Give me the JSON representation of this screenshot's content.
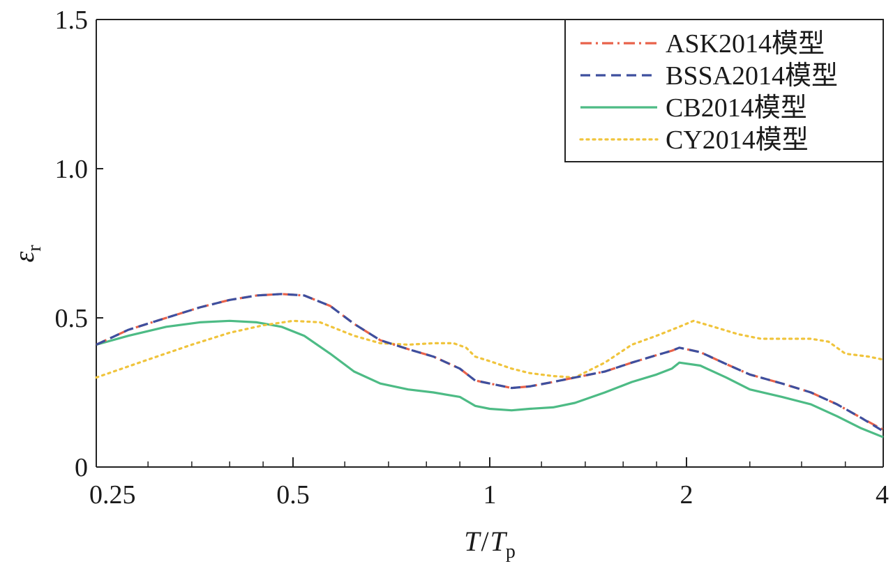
{
  "chart_data": {
    "type": "line",
    "title": "",
    "xlabel": "T/Tp",
    "xlabel_main": "T",
    "xlabel_sep": "/",
    "xlabel_sub_base": "T",
    "xlabel_subscript": "p",
    "ylabel": "εr",
    "ylabel_main": "ε",
    "ylabel_subscript": "r",
    "x_scale": "log2",
    "xlim": [
      0.25,
      4
    ],
    "ylim": [
      0,
      1.5
    ],
    "x_ticks": [
      0.25,
      0.5,
      1,
      2,
      4
    ],
    "x_tick_labels": [
      "0.25",
      "0.5",
      "1",
      "2",
      "4"
    ],
    "y_ticks": [
      0,
      0.5,
      1.0,
      1.5
    ],
    "y_tick_labels": [
      "0",
      "0.5",
      "1.0",
      "1.5"
    ],
    "grid": false,
    "legend_position": "top-right",
    "series": [
      {
        "name": "ASK2014模型",
        "color": "#e8624a",
        "dash": "dashdot",
        "x": [
          0.25,
          0.28,
          0.32,
          0.36,
          0.4,
          0.44,
          0.48,
          0.52,
          0.57,
          0.62,
          0.68,
          0.75,
          0.82,
          0.9,
          0.95,
          1.0,
          1.08,
          1.15,
          1.25,
          1.35,
          1.5,
          1.65,
          1.8,
          1.9,
          1.95,
          2.1,
          2.3,
          2.5,
          2.8,
          3.1,
          3.4,
          3.7,
          4.0
        ],
        "y": [
          0.41,
          0.46,
          0.5,
          0.535,
          0.56,
          0.575,
          0.58,
          0.575,
          0.54,
          0.48,
          0.425,
          0.395,
          0.37,
          0.33,
          0.29,
          0.28,
          0.265,
          0.27,
          0.285,
          0.3,
          0.32,
          0.35,
          0.375,
          0.39,
          0.4,
          0.385,
          0.345,
          0.31,
          0.28,
          0.25,
          0.21,
          0.165,
          0.125
        ]
      },
      {
        "name": "BSSA2014模型",
        "color": "#3e4f9e",
        "dash": "dashed",
        "x": [
          0.25,
          0.28,
          0.32,
          0.36,
          0.4,
          0.44,
          0.48,
          0.52,
          0.57,
          0.62,
          0.68,
          0.75,
          0.82,
          0.9,
          0.95,
          1.0,
          1.08,
          1.15,
          1.25,
          1.35,
          1.5,
          1.65,
          1.8,
          1.9,
          1.95,
          2.1,
          2.3,
          2.5,
          2.8,
          3.1,
          3.4,
          3.7,
          4.0
        ],
        "y": [
          0.41,
          0.46,
          0.5,
          0.535,
          0.56,
          0.575,
          0.58,
          0.575,
          0.54,
          0.48,
          0.425,
          0.395,
          0.37,
          0.33,
          0.29,
          0.28,
          0.265,
          0.27,
          0.285,
          0.3,
          0.32,
          0.35,
          0.375,
          0.39,
          0.4,
          0.385,
          0.345,
          0.31,
          0.28,
          0.25,
          0.21,
          0.165,
          0.12
        ]
      },
      {
        "name": "CB2014模型",
        "color": "#4dbb85",
        "dash": "solid",
        "x": [
          0.25,
          0.28,
          0.32,
          0.36,
          0.4,
          0.44,
          0.48,
          0.52,
          0.57,
          0.62,
          0.68,
          0.75,
          0.82,
          0.9,
          0.95,
          1.0,
          1.08,
          1.15,
          1.25,
          1.35,
          1.5,
          1.65,
          1.8,
          1.9,
          1.95,
          2.1,
          2.3,
          2.5,
          2.8,
          3.1,
          3.4,
          3.7,
          4.0
        ],
        "y": [
          0.41,
          0.44,
          0.47,
          0.485,
          0.49,
          0.485,
          0.47,
          0.44,
          0.38,
          0.32,
          0.28,
          0.26,
          0.25,
          0.235,
          0.205,
          0.195,
          0.19,
          0.195,
          0.2,
          0.215,
          0.25,
          0.285,
          0.31,
          0.33,
          0.35,
          0.34,
          0.3,
          0.26,
          0.235,
          0.21,
          0.17,
          0.13,
          0.1
        ]
      },
      {
        "name": "CY2014模型",
        "color": "#f0c43c",
        "dash": "dotted",
        "x": [
          0.25,
          0.3,
          0.35,
          0.4,
          0.45,
          0.5,
          0.55,
          0.62,
          0.68,
          0.75,
          0.82,
          0.88,
          0.92,
          0.95,
          1.0,
          1.08,
          1.15,
          1.25,
          1.35,
          1.5,
          1.65,
          1.8,
          1.95,
          2.05,
          2.2,
          2.4,
          2.6,
          2.8,
          3.1,
          3.3,
          3.5,
          3.8,
          4.0
        ],
        "y": [
          0.3,
          0.36,
          0.41,
          0.45,
          0.475,
          0.49,
          0.485,
          0.44,
          0.415,
          0.41,
          0.415,
          0.415,
          0.4,
          0.37,
          0.355,
          0.33,
          0.315,
          0.305,
          0.3,
          0.35,
          0.41,
          0.44,
          0.47,
          0.49,
          0.47,
          0.445,
          0.43,
          0.43,
          0.43,
          0.42,
          0.38,
          0.37,
          0.36
        ]
      }
    ]
  }
}
